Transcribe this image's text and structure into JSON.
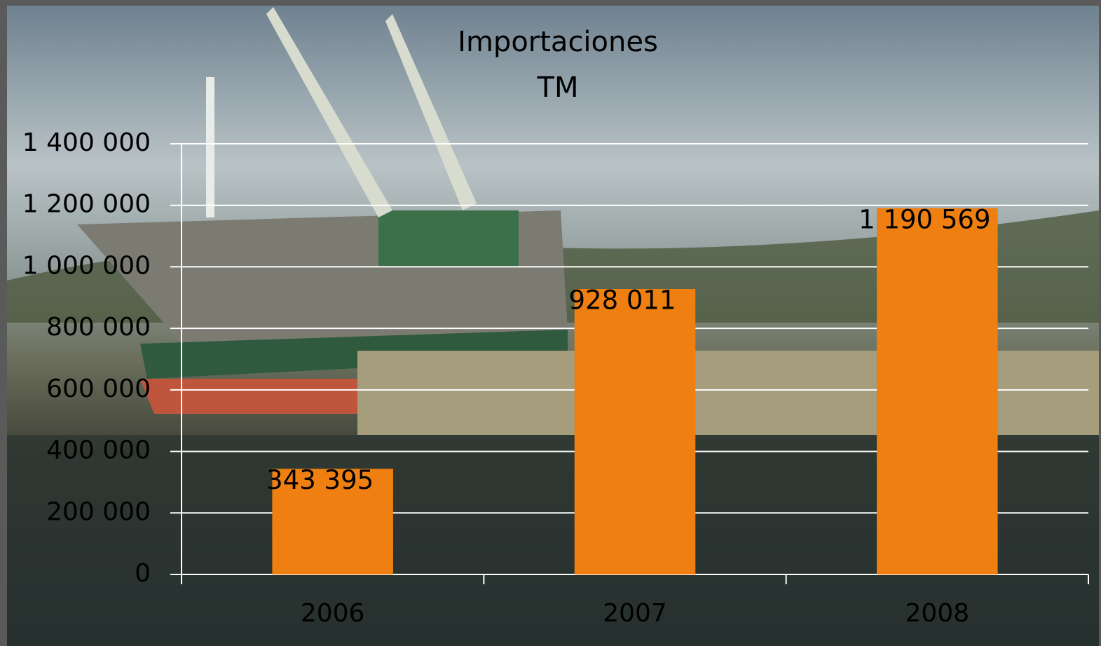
{
  "chart_data": {
    "type": "bar",
    "title": "Importaciones",
    "subtitle": "TM",
    "categories": [
      "2006",
      "2007",
      "2008"
    ],
    "values": [
      343395,
      928011,
      1190569
    ],
    "value_labels": [
      "343 395",
      "928 011",
      "1 190 569"
    ],
    "color": "#ee7f10",
    "ylim": [
      0,
      1400000
    ],
    "yticks": [
      0,
      {
        "value": 200000,
        "label": "200 000"
      },
      {
        "value": 400000,
        "label": "400 000"
      },
      {
        "value": 600000,
        "label": "600 000"
      },
      {
        "value": 800000,
        "label": "800 000"
      },
      {
        "value": 1000000,
        "label": "1 000 000"
      },
      {
        "value": 1200000,
        "label": "1 200 000"
      },
      {
        "value": 1400000,
        "label": "1 400 000"
      }
    ],
    "grid": true
  }
}
